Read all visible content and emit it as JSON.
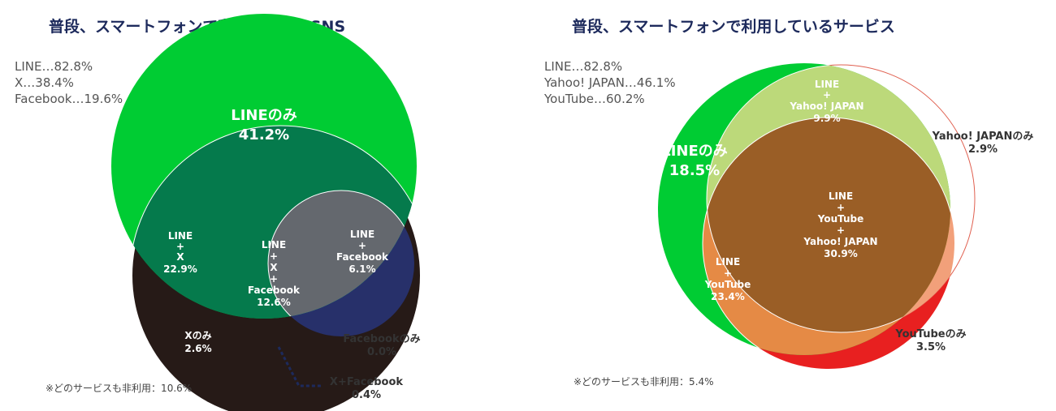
{
  "panels": [
    {
      "title": "普段、スマートフォンで利用しているSNS",
      "totals": [
        "LINE…82.8%",
        "X…38.4%",
        "Facebook…19.6%"
      ],
      "note": "※どのサービスも非利用：10.6%",
      "colors": {
        "line_only": "#00cc33",
        "line_x": "#057a4c",
        "line_fb": "#1f9aa5",
        "all_three": "#64686e",
        "x_only": "#261a17",
        "x_fb": "#27306a",
        "fb_only": "#d9dde8"
      },
      "regions": [
        {
          "name": "LINEのみ",
          "value": "41.2%"
        },
        {
          "name": "LINE + X",
          "value": "22.9%"
        },
        {
          "name": "LINE + Facebook",
          "value": "6.1%"
        },
        {
          "name": "LINE + X + Facebook",
          "value": "12.6%"
        },
        {
          "name": "Xのみ",
          "value": "2.6%"
        },
        {
          "name": "Facebookのみ",
          "value": "0.0%"
        },
        {
          "name": "X+Facebook",
          "value": "0.4%"
        }
      ]
    },
    {
      "title": "普段、スマートフォンで利用しているサービス",
      "totals": [
        "LINE…82.8%",
        "Yahoo! JAPAN…46.1%",
        "YouTube…60.2%"
      ],
      "note": "※どのサービスも非利用：5.4%",
      "colors": {
        "line_only": "#00cc33",
        "line_yj": "#bcd97a",
        "line_yt": "#e58a45",
        "all_three": "#9a5e26",
        "yj_only": "#ffffff",
        "yt_only": "#e82020",
        "yj_stroke": "#e06050",
        "yj_yt": "#f2a07a"
      },
      "regions": [
        {
          "name": "LINEのみ",
          "value": "18.5%"
        },
        {
          "name": "LINE + Yahoo! JAPAN",
          "value": "9.9%"
        },
        {
          "name": "Yahoo! JAPANのみ",
          "value": "2.9%"
        },
        {
          "name": "LINE + YouTube + Yahoo! JAPAN",
          "value": "30.9%"
        },
        {
          "name": "LINE + YouTube",
          "value": "23.4%"
        },
        {
          "name": "YouTubeのみ",
          "value": "3.5%"
        }
      ]
    }
  ],
  "chart_data": [
    {
      "type": "venn",
      "title": "普段、スマートフォンで利用しているSNS",
      "sets": [
        {
          "name": "LINE",
          "value": 82.8
        },
        {
          "name": "X",
          "value": 38.4
        },
        {
          "name": "Facebook",
          "value": 19.6
        }
      ],
      "regions": [
        {
          "sets": [
            "LINE"
          ],
          "value": 41.2
        },
        {
          "sets": [
            "LINE",
            "X"
          ],
          "value": 22.9
        },
        {
          "sets": [
            "LINE",
            "Facebook"
          ],
          "value": 6.1
        },
        {
          "sets": [
            "LINE",
            "X",
            "Facebook"
          ],
          "value": 12.6
        },
        {
          "sets": [
            "X"
          ],
          "value": 2.6
        },
        {
          "sets": [
            "Facebook"
          ],
          "value": 0.0
        },
        {
          "sets": [
            "X",
            "Facebook"
          ],
          "value": 0.4
        }
      ],
      "none_value": 10.6
    },
    {
      "type": "venn",
      "title": "普段、スマートフォンで利用しているサービス",
      "sets": [
        {
          "name": "LINE",
          "value": 82.8
        },
        {
          "name": "Yahoo! JAPAN",
          "value": 46.1
        },
        {
          "name": "YouTube",
          "value": 60.2
        }
      ],
      "regions": [
        {
          "sets": [
            "LINE"
          ],
          "value": 18.5
        },
        {
          "sets": [
            "LINE",
            "Yahoo! JAPAN"
          ],
          "value": 9.9
        },
        {
          "sets": [
            "Yahoo! JAPAN"
          ],
          "value": 2.9
        },
        {
          "sets": [
            "LINE",
            "YouTube",
            "Yahoo! JAPAN"
          ],
          "value": 30.9
        },
        {
          "sets": [
            "LINE",
            "YouTube"
          ],
          "value": 23.4
        },
        {
          "sets": [
            "YouTube"
          ],
          "value": 3.5
        }
      ],
      "none_value": 5.4
    }
  ]
}
